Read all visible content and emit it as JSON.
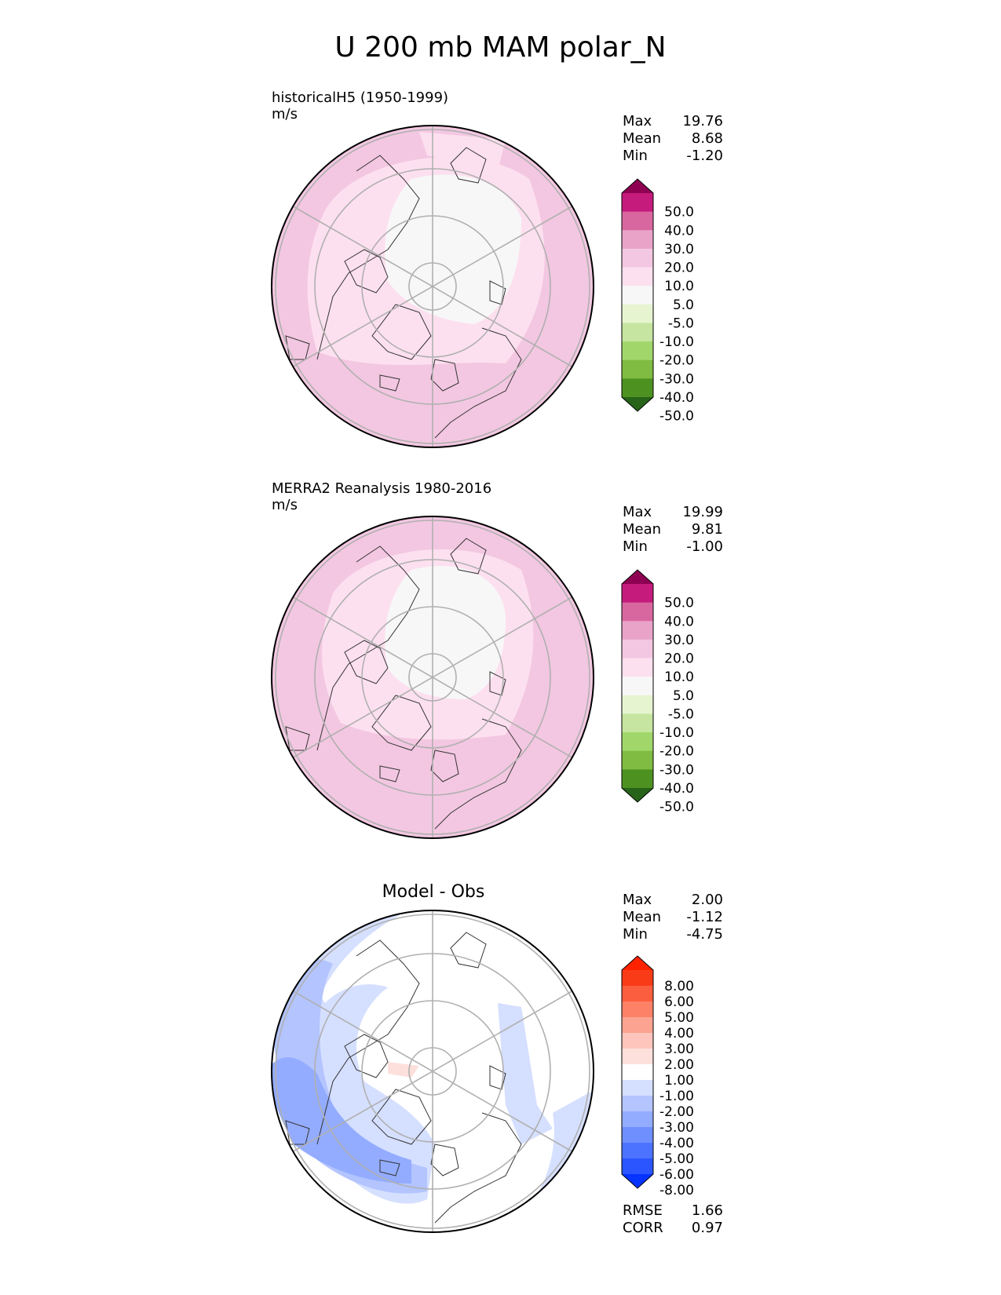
{
  "title": "U 200 mb MAM polar_N",
  "panels": [
    {
      "label_line1": "historicalH5 (1950-1999)",
      "label_line2": "m/s",
      "stats": {
        "max_label": "Max",
        "max": "19.76",
        "mean_label": "Mean",
        "mean": "8.68",
        "min_label": "Min",
        "min": "-1.20"
      },
      "colorbar": {
        "colors": [
          "#276419",
          "#4d9221",
          "#7fbc41",
          "#a1d76a",
          "#c5e5a0",
          "#e6f5d0",
          "#f7f7f7",
          "#fde0ef",
          "#f3c7e1",
          "#e9a3c9",
          "#d9679f",
          "#c51b7d",
          "#8e0152"
        ],
        "ticks": [
          "-50.0",
          "-40.0",
          "-30.0",
          "-20.0",
          "-10.0",
          "-5.0",
          "5.0",
          "10.0",
          "20.0",
          "30.0",
          "40.0",
          "50.0"
        ]
      }
    },
    {
      "label_line1": "MERRA2 Reanalysis 1980-2016",
      "label_line2": "m/s",
      "stats": {
        "max_label": "Max",
        "max": "19.99",
        "mean_label": "Mean",
        "mean": "9.81",
        "min_label": "Min",
        "min": "-1.00"
      },
      "colorbar": {
        "colors": [
          "#276419",
          "#4d9221",
          "#7fbc41",
          "#a1d76a",
          "#c5e5a0",
          "#e6f5d0",
          "#f7f7f7",
          "#fde0ef",
          "#f3c7e1",
          "#e9a3c9",
          "#d9679f",
          "#c51b7d",
          "#8e0152"
        ],
        "ticks": [
          "-50.0",
          "-40.0",
          "-30.0",
          "-20.0",
          "-10.0",
          "-5.0",
          "5.0",
          "10.0",
          "20.0",
          "30.0",
          "40.0",
          "50.0"
        ]
      }
    },
    {
      "title": "Model - Obs",
      "stats": {
        "max_label": "Max",
        "max": "2.00",
        "mean_label": "Mean",
        "mean": "-1.12",
        "min_label": "Min",
        "min": "-4.75"
      },
      "colorbar": {
        "colors": [
          "#0533ff",
          "#2a55ff",
          "#4c73ff",
          "#6f8fff",
          "#93acff",
          "#b3c4ff",
          "#d5dfff",
          "#ffffff",
          "#fde0dc",
          "#fdc5bb",
          "#fca391",
          "#fc8167",
          "#fb5e3e",
          "#fa3b18",
          "#ff2200"
        ],
        "ticks": [
          "-8.00",
          "-6.00",
          "-5.00",
          "-4.00",
          "-3.00",
          "-2.00",
          "-1.00",
          "1.00",
          "2.00",
          "3.00",
          "4.00",
          "5.00",
          "6.00",
          "8.00"
        ]
      },
      "rmse_label": "RMSE",
      "rmse": "1.66",
      "corr_label": "CORR",
      "corr": "0.97"
    }
  ]
}
